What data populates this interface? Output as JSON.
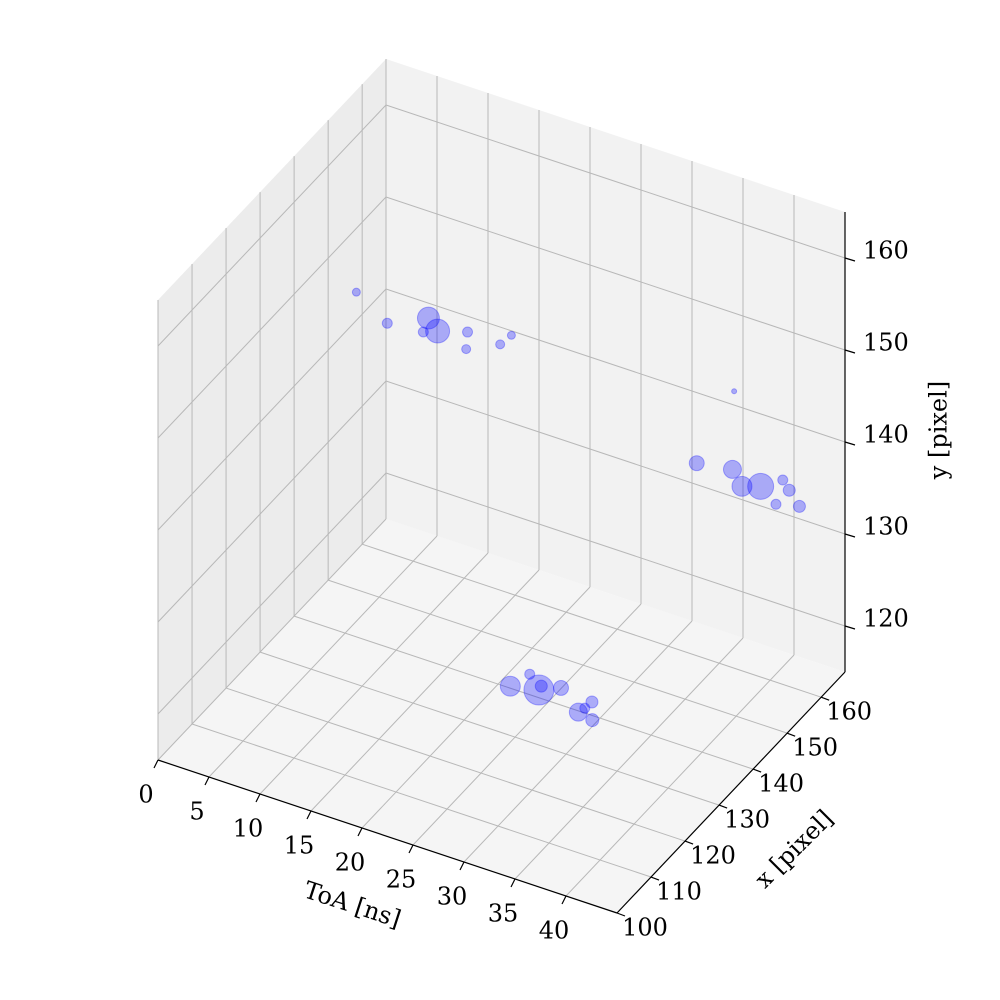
{
  "chart_data": {
    "type": "scatter3d",
    "xlabel": "ToA [ns]",
    "ylabel": "x [pixel]",
    "zlabel": "y [pixel]",
    "xlim": [
      0,
      45
    ],
    "ylim": [
      100,
      167
    ],
    "zlim": [
      115,
      165
    ],
    "xticks": [
      0,
      5,
      10,
      15,
      20,
      25,
      30,
      35,
      40
    ],
    "yticks": [
      100,
      110,
      120,
      130,
      140,
      150,
      160
    ],
    "zticks": [
      120,
      130,
      140,
      150,
      160
    ],
    "grid": true,
    "series": [
      {
        "color": "blue",
        "alpha": 0.3,
        "x": [
          4.5,
          9.0,
          11.7,
          13.3,
          12.3,
          15.6,
          16.7,
          18.9,
          19.1,
          36.4,
          32.2,
          35.3,
          37.2,
          38.6,
          39.8,
          41.0,
          41.0,
          42.9,
          24.9,
          24.3,
          26.7,
          26.6,
          28.2,
          31.5,
          31.2,
          31.4,
          32.8
        ],
        "y": [
          144.8,
          140.4,
          144.4,
          142.3,
          141.1,
          144.2,
          140.5,
          143.9,
          146.6,
          160.2,
          161.8,
          163.0,
          160.1,
          161.4,
          164.3,
          162.6,
          158.7,
          159.9,
          134.6,
          130.7,
          131.9,
          132.9,
          133.9,
          133.1,
          130.0,
          131.3,
          129.3
        ],
        "z": [
          150,
          150,
          150,
          150,
          150,
          150,
          150,
          150,
          150,
          145,
          135,
          135,
          135,
          135,
          135,
          135,
          135,
          135,
          120,
          120,
          120,
          120,
          120,
          120,
          120,
          120,
          120
        ],
        "sizes": [
          33,
          52,
          250,
          298,
          52,
          52,
          42,
          42,
          33,
          13,
          116,
          168,
          207,
          350,
          52,
          75,
          52,
          75,
          52,
          207,
          466,
          75,
          116,
          75,
          168,
          52,
          87
        ]
      }
    ]
  }
}
